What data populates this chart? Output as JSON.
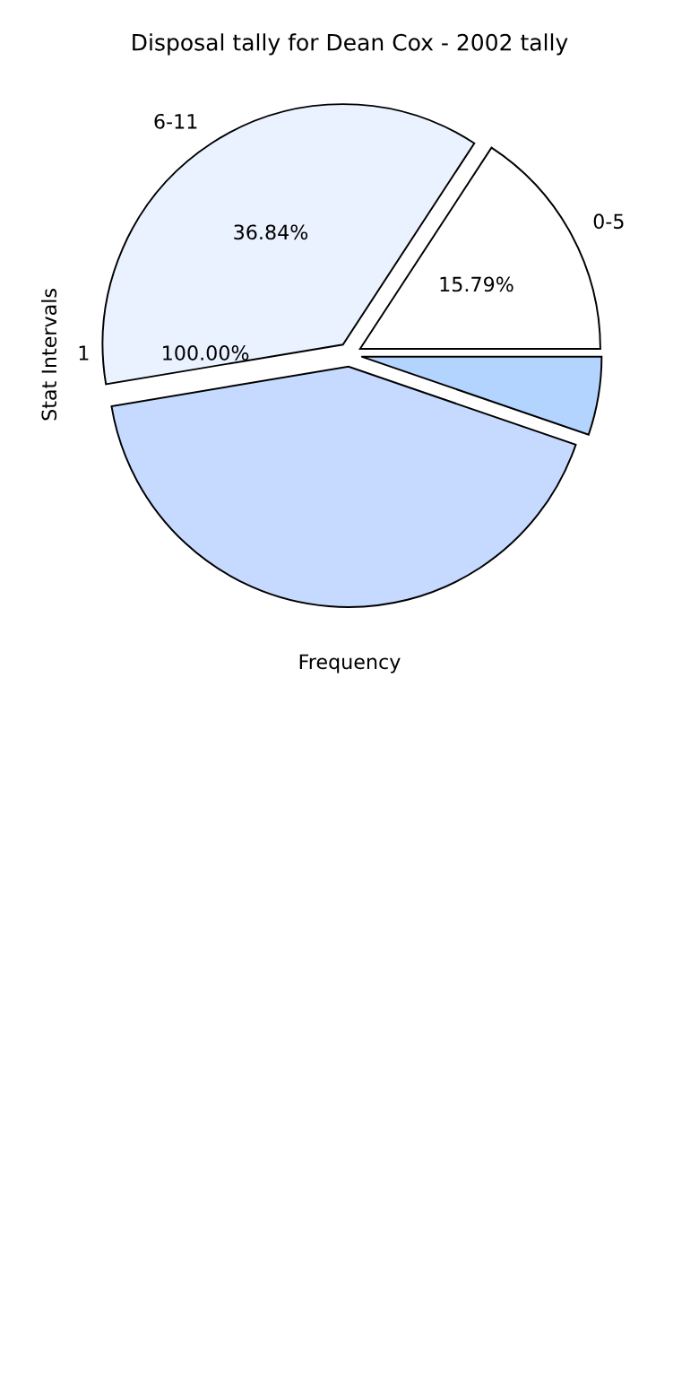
{
  "chart_data": {
    "type": "pie",
    "title": "Disposal tally for Dean Cox - 2002 tally",
    "xlabel": "Frequency",
    "ylabel": "Stat Intervals",
    "categories": [
      "0-5",
      "6-11",
      null,
      null
    ],
    "values": [
      15.79,
      36.84,
      42.11,
      5.26
    ],
    "colors": [
      "#ffffff",
      "#eaf1ff",
      "#c6d9ff",
      "#b3d4ff"
    ],
    "value_labels": [
      "15.79%",
      "36.84%",
      null,
      null
    ],
    "annotations": [
      "1",
      "100.00%"
    ],
    "legend": false
  }
}
